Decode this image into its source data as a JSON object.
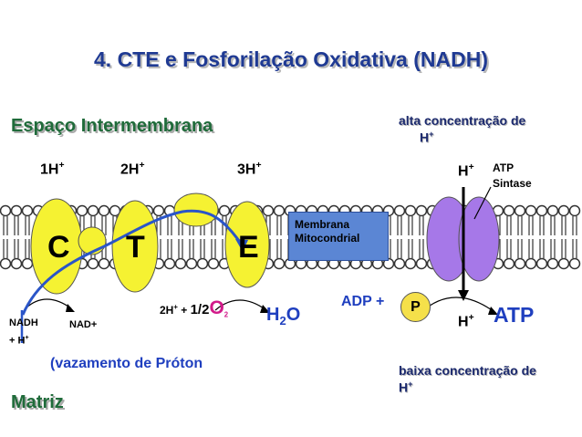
{
  "title": "4. CTE e Fosforilação Oxidativa (NADH)",
  "regions": {
    "intermembrane": "Espaço Intermembrana",
    "matrix": "Matriz"
  },
  "complexes": {
    "c": "C",
    "t": "T",
    "e": "E"
  },
  "protons_top": {
    "p1": "1H",
    "p2": "2H",
    "p3": "3H",
    "synthase": "H",
    "plus": "+"
  },
  "membrane_label": {
    "line1": "Membrana",
    "line2": "Mitocondrial"
  },
  "atp_synthase": {
    "line1": "ATP",
    "line2": "Sintase"
  },
  "gradient": {
    "high_line1": "alta concentração de",
    "high_line2": "H",
    "low_line1": "baixa concentração de",
    "low_line2": "H"
  },
  "matrix_labels": {
    "nadh_line1": "NADH",
    "nadh_line2": "+ H",
    "nad": "NAD+",
    "oxygen_prefix": "2H",
    "oxygen_mid": " + ",
    "oxygen_half": "1/2",
    "oxygen_o": "O",
    "oxygen_sub": "2",
    "water_h": "H",
    "water_sub": "2",
    "water_o": "O",
    "adp": "ADP +",
    "p": "P",
    "h_bottom": "H",
    "atp": "ATP",
    "leak": "(vazamento de Próton"
  },
  "colors": {
    "title": "#1f3a93",
    "region": "#1f6b3a",
    "complex_fill": "#f5f232",
    "synthase_fill": "#a678e8",
    "membrane_box": "#5b86d4",
    "oxygen": "#d21b8a",
    "product_blue": "#1f3fbf",
    "electron_path": "#2a55c8"
  }
}
